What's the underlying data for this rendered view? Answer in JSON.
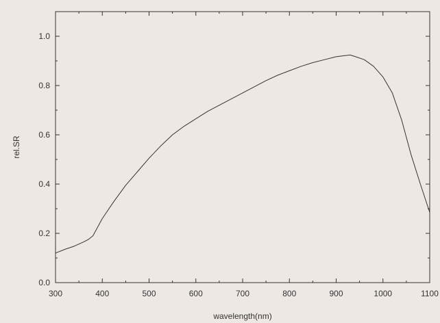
{
  "chart_data": {
    "type": "line",
    "title": "",
    "xlabel": "wavelength(nm)",
    "ylabel": "rel.SR",
    "xlim": [
      300,
      1100
    ],
    "ylim": [
      0.0,
      1.1
    ],
    "xticks": [
      300,
      400,
      500,
      600,
      700,
      800,
      900,
      1000,
      1100
    ],
    "xtick_labels": [
      "300",
      "400",
      "500",
      "600",
      "700",
      "800",
      "900",
      "1000",
      "1100"
    ],
    "yticks": [
      0.0,
      0.2,
      0.4,
      0.6,
      0.8,
      1.0
    ],
    "ytick_labels": [
      "0.0",
      "0.2",
      "0.4",
      "0.6",
      "0.8",
      "1.0"
    ],
    "grid": false,
    "legend": "none",
    "colors": {
      "background": "#ede8e3",
      "line": "#333333",
      "axis": "#333333"
    },
    "series": [
      {
        "x": [
          300,
          320,
          340,
          360,
          370,
          380,
          400,
          425,
          450,
          475,
          500,
          525,
          550,
          575,
          600,
          625,
          650,
          675,
          700,
          725,
          750,
          775,
          800,
          825,
          850,
          875,
          900,
          920,
          930,
          940,
          960,
          980,
          1000,
          1020,
          1040,
          1060,
          1080,
          1100
        ],
        "y": [
          0.12,
          0.135,
          0.148,
          0.165,
          0.175,
          0.19,
          0.26,
          0.33,
          0.395,
          0.45,
          0.505,
          0.555,
          0.6,
          0.635,
          0.665,
          0.695,
          0.72,
          0.745,
          0.77,
          0.795,
          0.82,
          0.842,
          0.86,
          0.878,
          0.893,
          0.905,
          0.917,
          0.922,
          0.924,
          0.918,
          0.905,
          0.878,
          0.835,
          0.77,
          0.66,
          0.52,
          0.4,
          0.285
        ]
      }
    ]
  }
}
